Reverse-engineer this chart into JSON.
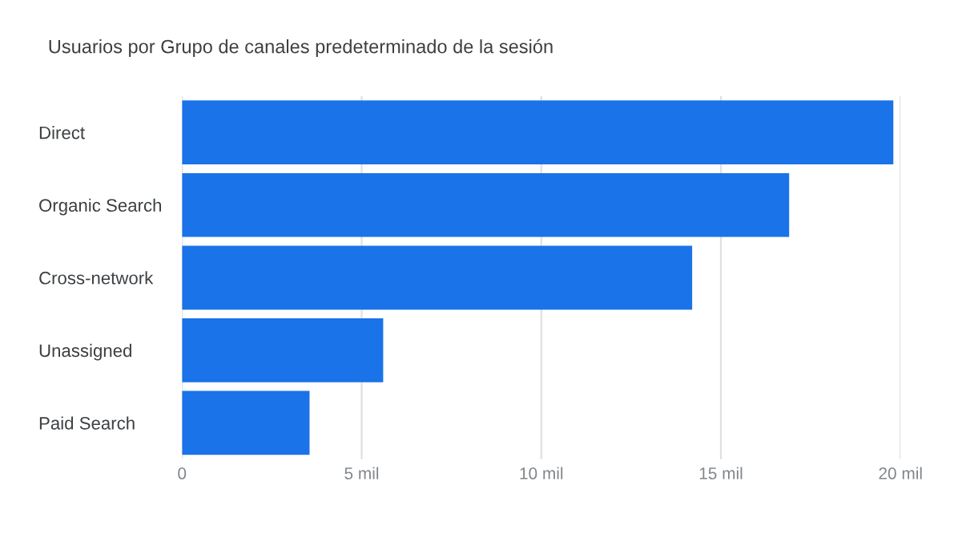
{
  "chart_data": {
    "type": "bar",
    "orientation": "horizontal",
    "title": "Usuarios por Grupo de canales predeterminado de la sesión",
    "categories": [
      "Direct",
      "Organic Search",
      "Cross-network",
      "Unassigned",
      "Paid Search"
    ],
    "values": [
      19.8,
      16.9,
      14.2,
      5.6,
      3.55
    ],
    "color": "#1a73e8",
    "xlim": [
      0,
      20
    ],
    "xticks": [
      0,
      {
        "value": 5,
        "label": "5 mil"
      },
      {
        "value": 10,
        "label": "10 mil"
      },
      {
        "value": 15,
        "label": "15 mil"
      },
      {
        "value": 20,
        "label": "20 mil"
      }
    ],
    "grid": "x",
    "legend": false
  }
}
